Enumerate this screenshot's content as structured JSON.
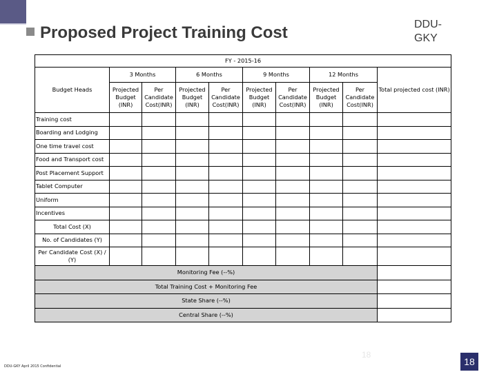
{
  "header": {
    "title": "Proposed Project Training Cost",
    "brand_line1": "DDU-",
    "brand_line2": "GKY"
  },
  "table": {
    "fy": "FY - 2015-16",
    "budget_heads": "Budget Heads",
    "periods": [
      "3 Months",
      "6 Months",
      "9 Months",
      "12 Months"
    ],
    "total_projected": "Total projected cost (INR)",
    "sub_projected": "Projected Budget (INR)",
    "sub_per_candidate": "Per Candidate Cost(INR)",
    "rows": [
      "Training cost",
      "Boarding and Lodging",
      "One time travel cost",
      "Food and Transport cost",
      "Post Placement Support",
      "Tablet Computer",
      "Uniform",
      "Incentives"
    ],
    "total_cost": "Total Cost (X)",
    "num_candidates": "No. of Candidates (Y)",
    "per_candidate": "Per Candidate Cost (X) / (Y)",
    "monitoring_fee": "Monitoring Fee (--%)",
    "total_training_cost": "Total Training Cost + Monitoring Fee",
    "state_share": "State Share (--%)",
    "central_share": "Central Share (--%)"
  },
  "footer": {
    "note": "DDU-GKY April 2015 Confidential",
    "ghost_number": "18",
    "page_number": "18"
  },
  "colors": {
    "corner": "#5a5a86",
    "title": "#3a3a3a",
    "page_box": "#2a2f6b",
    "summary_shade": "#d4d4d4"
  }
}
